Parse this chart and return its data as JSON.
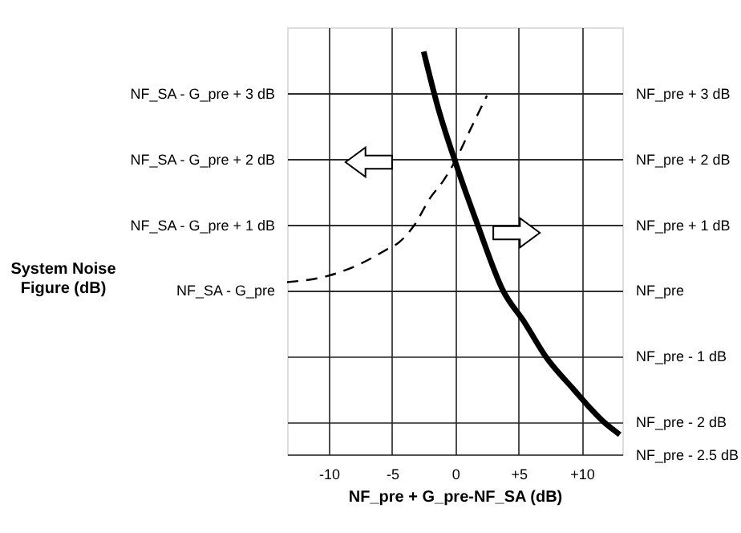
{
  "chart_data": {
    "type": "line",
    "xlabel": "NF_pre + G_pre-NF_SA (dB)",
    "ylabel": "System Noise Figure (dB)",
    "xlim": [
      -13.3,
      13.2
    ],
    "xticks": [
      -10,
      -5,
      0,
      {
        "value": 5,
        "label": "+5"
      },
      {
        "value": 10,
        "label": "+10"
      }
    ],
    "ylim": [
      -2.5,
      4
    ],
    "yticks": [
      {
        "value": 3,
        "label": "NF_SA - G_pre + 3 dB"
      },
      {
        "value": 2,
        "label": "NF_SA - G_pre + 2 dB"
      },
      {
        "value": 1,
        "label": "NF_SA - G_pre + 1 dB"
      },
      {
        "value": 0,
        "label": "NF_SA - G_pre"
      }
    ],
    "y2lim": [
      -2.5,
      4
    ],
    "y2ticks": [
      {
        "value": 3,
        "label": "NF_pre + 3 dB"
      },
      {
        "value": 2,
        "label": "NF_pre + 2 dB"
      },
      {
        "value": 1,
        "label": "NF_pre + 1 dB"
      },
      {
        "value": 0,
        "label": "NF_pre"
      },
      {
        "value": -1,
        "label": "NF_pre - 1 dB"
      },
      {
        "value": -2,
        "label": "NF_pre - 2 dB"
      },
      {
        "value": -2.5,
        "label": "NF_pre - 2.5 dB"
      }
    ],
    "grid": true,
    "series": [
      {
        "color": "#000000",
        "line_style": "dashed",
        "axis": "y",
        "x": [
          -13.3,
          -10,
          -7.5,
          -5.4,
          -4.5,
          -3.2,
          -2,
          -1,
          0,
          1.2,
          2.5
        ],
        "values": [
          0.12,
          0.22,
          0.4,
          0.62,
          0.72,
          1.0,
          1.4,
          1.65,
          1.97,
          2.45,
          2.96
        ]
      },
      {
        "color": "#000000",
        "line_style": "solid",
        "axis": "y2",
        "x": [
          -2.5,
          -1.4,
          0,
          1.75,
          3.75,
          5.5,
          7.1,
          9.3,
          11.7,
          13
        ],
        "values": [
          3.63,
          2.8,
          1.95,
          1.0,
          0.0,
          -0.5,
          -1.0,
          -1.5,
          -2.0,
          -2.2
        ]
      }
    ]
  }
}
